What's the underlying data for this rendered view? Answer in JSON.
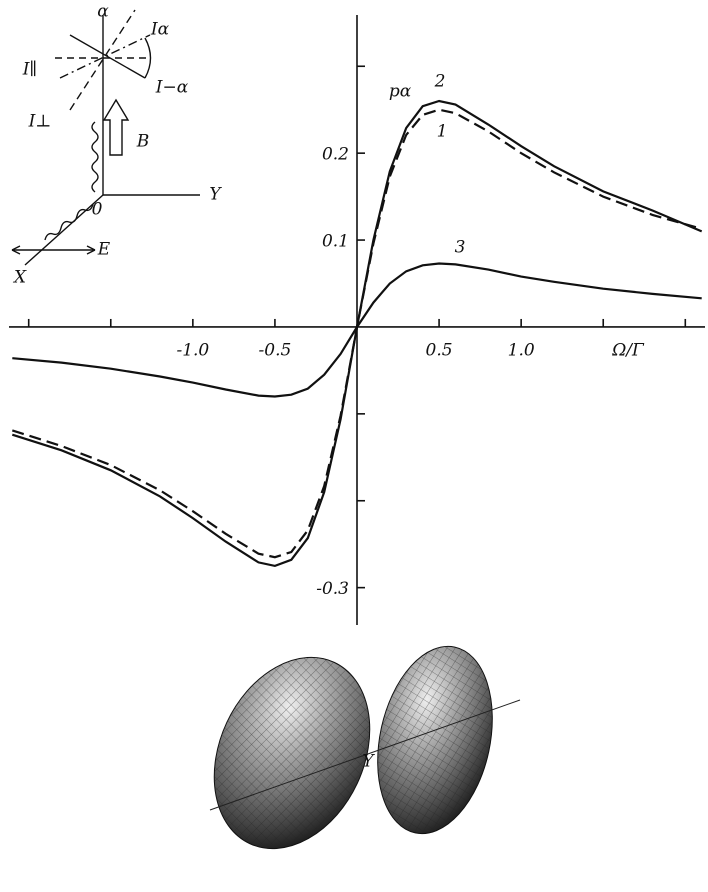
{
  "chart_data": {
    "type": "line",
    "x_label": "Ω/Γ",
    "y_label": "pα",
    "x": [
      -2.1,
      -1.8,
      -1.5,
      -1.2,
      -1.0,
      -0.8,
      -0.6,
      -0.5,
      -0.4,
      -0.3,
      -0.2,
      -0.1,
      0,
      0.1,
      0.2,
      0.3,
      0.4,
      0.5,
      0.6,
      0.8,
      1.0,
      1.2,
      1.5,
      1.8,
      2.1
    ],
    "series": [
      {
        "name": "1",
        "color": "#111111",
        "dashed": true,
        "values": [
          -0.119,
          -0.137,
          -0.159,
          -0.188,
          -0.212,
          -0.238,
          -0.261,
          -0.265,
          -0.259,
          -0.234,
          -0.183,
          -0.102,
          0,
          0.096,
          0.173,
          0.221,
          0.244,
          0.25,
          0.246,
          0.225,
          0.2,
          0.178,
          0.15,
          0.129,
          0.113
        ]
      },
      {
        "name": "2",
        "color": "#111111",
        "dashed": false,
        "values": [
          -0.124,
          -0.142,
          -0.165,
          -0.195,
          -0.22,
          -0.247,
          -0.271,
          -0.275,
          -0.268,
          -0.243,
          -0.19,
          -0.106,
          0,
          0.1,
          0.179,
          0.229,
          0.254,
          0.26,
          0.256,
          0.233,
          0.208,
          0.185,
          0.156,
          0.134,
          0.11
        ]
      },
      {
        "name": "3",
        "color": "#111111",
        "dashed": false,
        "values": [
          -0.036,
          -0.041,
          -0.048,
          -0.057,
          -0.064,
          -0.072,
          -0.079,
          -0.08,
          -0.078,
          -0.071,
          -0.055,
          -0.031,
          0,
          0.028,
          0.05,
          0.064,
          0.071,
          0.073,
          0.072,
          0.066,
          0.058,
          0.052,
          0.044,
          0.038,
          0.033
        ]
      }
    ],
    "xlim": [
      -2.12,
      2.12
    ],
    "ylim": [
      -0.343,
      0.359
    ],
    "xticks": [
      {
        "value": -1,
        "label": "-1.0"
      },
      -0.5,
      0.5,
      {
        "value": 1,
        "label": "1.0"
      }
    ],
    "x_minor_ticks": [
      -2,
      -1.5,
      1.5,
      2
    ],
    "yticks": [
      0.1,
      0.2,
      -0.3
    ],
    "y_minor_ticks": [
      0.3,
      -0.1,
      -0.2
    ],
    "inset_labels": [
      "α",
      "I∥",
      "Iα",
      "I−α",
      "I⊥",
      "B",
      "0",
      "Y",
      "X",
      "E"
    ],
    "figure_labels": [
      "Y"
    ]
  }
}
